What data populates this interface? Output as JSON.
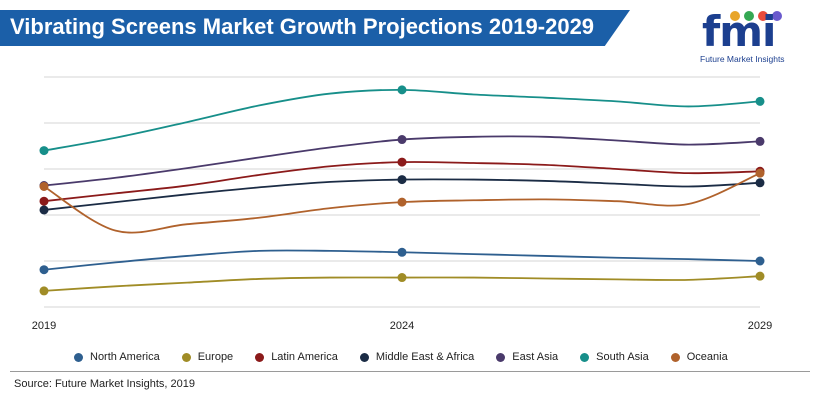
{
  "header": {
    "title": "Vibrating Screens Market Growth Projections 2019-2029"
  },
  "logo": {
    "mark": "fmi",
    "subtitle": "Future Market Insights",
    "dot_colors": [
      "#e8a52a",
      "#34a853",
      "#e84b3c",
      "#6a5acd"
    ]
  },
  "colors": {
    "banner": "#1b5fa8",
    "gridline": "#d4d4d4"
  },
  "source": "Source: Future Market Insights, 2019",
  "chart_data": {
    "type": "line",
    "title": "Vibrating Screens Market Growth Projections 2019-2029",
    "xlabel": "",
    "ylabel": "",
    "x": [
      2019,
      2020,
      2021,
      2022,
      2023,
      2024,
      2025,
      2026,
      2027,
      2028,
      2029
    ],
    "x_tick_labels": [
      "2019",
      "2024",
      "2029"
    ],
    "ylim": [
      0,
      5
    ],
    "y_gridlines": [
      0,
      1,
      2,
      3,
      4,
      5
    ],
    "grid": true,
    "legend_position": "bottom",
    "series": [
      {
        "name": "North America",
        "color": "#2e5f8f",
        "values": [
          0.81,
          0.97,
          1.11,
          1.22,
          1.22,
          1.19,
          1.15,
          1.11,
          1.07,
          1.04,
          1.0
        ],
        "markers": [
          2019,
          2024,
          2029
        ]
      },
      {
        "name": "Europe",
        "color": "#a08c26",
        "values": [
          0.35,
          0.45,
          0.53,
          0.61,
          0.64,
          0.64,
          0.64,
          0.62,
          0.6,
          0.59,
          0.67
        ],
        "markers": [
          2019,
          2024,
          2029
        ]
      },
      {
        "name": "Latin America",
        "color": "#8b1a1a",
        "values": [
          2.3,
          2.47,
          2.64,
          2.87,
          3.06,
          3.15,
          3.13,
          3.09,
          3.0,
          2.91,
          2.95
        ],
        "markers": [
          2019,
          2024,
          2029
        ]
      },
      {
        "name": "Middle East & Africa",
        "color": "#1b2c45",
        "values": [
          2.11,
          2.28,
          2.45,
          2.6,
          2.72,
          2.77,
          2.77,
          2.74,
          2.68,
          2.62,
          2.7
        ],
        "markers": [
          2019,
          2024,
          2029
        ]
      },
      {
        "name": "East Asia",
        "color": "#4a3a6b",
        "values": [
          2.64,
          2.81,
          3.02,
          3.25,
          3.47,
          3.64,
          3.7,
          3.7,
          3.62,
          3.53,
          3.6
        ],
        "markers": [
          2019,
          2024,
          2029
        ]
      },
      {
        "name": "South Asia",
        "color": "#178f8a",
        "values": [
          3.4,
          3.68,
          4.02,
          4.38,
          4.64,
          4.72,
          4.62,
          4.55,
          4.47,
          4.36,
          4.47
        ],
        "markers": [
          2019,
          2024,
          2029
        ]
      },
      {
        "name": "Oceania",
        "color": "#b0622c",
        "values": [
          2.62,
          1.66,
          1.8,
          1.94,
          2.15,
          2.28,
          2.32,
          2.34,
          2.3,
          2.24,
          2.91
        ],
        "markers": [
          2019,
          2024,
          2029
        ]
      }
    ]
  }
}
